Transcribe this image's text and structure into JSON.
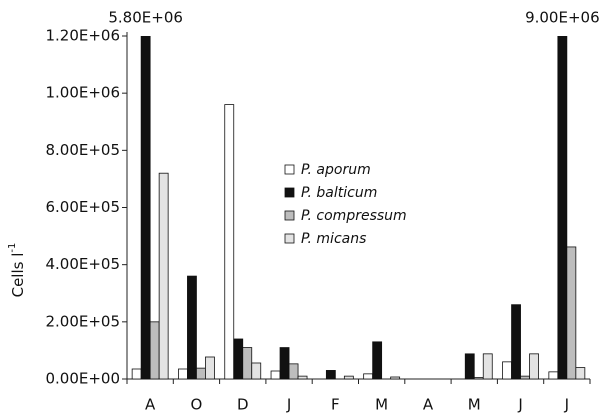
{
  "chart_data": {
    "type": "bar",
    "categories": [
      "A",
      "O",
      "D",
      "J",
      "F",
      "M",
      "A",
      "M",
      "J",
      "J"
    ],
    "ylabel": "Cells l",
    "ylabel_sup": "-1",
    "series": [
      {
        "name": "P. aporum",
        "color": "#ffffff",
        "values": [
          35000,
          35000,
          960000,
          28000,
          0,
          18000,
          0,
          0,
          60000,
          25000
        ]
      },
      {
        "name": "P. balticum",
        "color": "#111111",
        "values": [
          5800000,
          360000,
          140000,
          110000,
          30000,
          130000,
          0,
          88000,
          260000,
          9000000
        ],
        "value_labels": [
          "5.80E+06",
          null,
          null,
          null,
          null,
          null,
          null,
          null,
          null,
          "9.00E+06"
        ]
      },
      {
        "name": "P. compressum",
        "color": "#bdbdbd",
        "values": [
          200000,
          38000,
          110000,
          53000,
          0,
          0,
          0,
          5000,
          10000,
          462000
        ]
      },
      {
        "name": "P. micans",
        "color": "#e3e3e3",
        "values": [
          720000,
          77000,
          56000,
          10000,
          10000,
          7000,
          0,
          88000,
          88000,
          40000
        ]
      }
    ],
    "ylim": [
      0,
      1200000
    ],
    "yticks": [
      {
        "value": 0,
        "label": "0.00E+00"
      },
      {
        "value": 200000,
        "label": "2.00E+05"
      },
      {
        "value": 400000,
        "label": "4.00E+05"
      },
      {
        "value": 600000,
        "label": "6.00E+05"
      },
      {
        "value": 800000,
        "label": "8.00E+05"
      },
      {
        "value": 1000000,
        "label": "1.00E+06"
      },
      {
        "value": 1200000,
        "label": "1.20E+06"
      }
    ],
    "grid": false,
    "legend_position": "center"
  }
}
